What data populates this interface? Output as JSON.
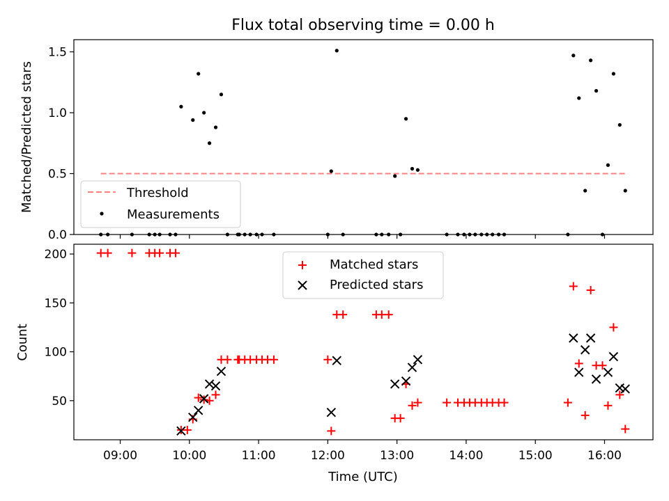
{
  "figure_title": "Flux total observing time = 0.00 h",
  "chart_data": [
    {
      "type": "scatter",
      "panel": "top",
      "title": "Flux total observing time = 0.00 h",
      "xlabel": "",
      "ylabel": "Matched/Predicted stars",
      "x_unit": "hours UTC (decimal)",
      "xlim": [
        8.33,
        16.7
      ],
      "ylim": [
        0,
        1.6
      ],
      "yticks": [
        0.0,
        0.5,
        1.0,
        1.5
      ],
      "ytick_labels": [
        "0.0",
        "0.5",
        "1.0",
        "1.5"
      ],
      "legend_position": "lower-left",
      "legend": [
        "Threshold",
        "Measurements"
      ],
      "threshold": {
        "name": "Threshold",
        "value": 0.5,
        "x_range": [
          8.72,
          16.33
        ],
        "color": "#ff8080",
        "style": "dashed"
      },
      "series": [
        {
          "name": "Measurements",
          "color": "#000000",
          "marker": "dot",
          "points": [
            [
              8.72,
              0
            ],
            [
              8.82,
              0
            ],
            [
              9.17,
              0
            ],
            [
              9.42,
              0
            ],
            [
              9.5,
              0
            ],
            [
              9.57,
              0
            ],
            [
              9.72,
              0
            ],
            [
              9.8,
              0
            ],
            [
              9.88,
              1.05
            ],
            [
              10.05,
              0.94
            ],
            [
              10.13,
              1.32
            ],
            [
              10.21,
              1.0
            ],
            [
              10.29,
              0.75
            ],
            [
              10.38,
              0.88
            ],
            [
              10.46,
              1.15
            ],
            [
              10.55,
              0
            ],
            [
              10.7,
              0
            ],
            [
              10.72,
              0
            ],
            [
              10.8,
              0
            ],
            [
              10.88,
              0
            ],
            [
              10.97,
              0
            ],
            [
              11.05,
              0
            ],
            [
              11.22,
              0
            ],
            [
              12.0,
              0
            ],
            [
              12.05,
              0.52
            ],
            [
              12.13,
              1.51
            ],
            [
              12.22,
              0
            ],
            [
              12.7,
              0
            ],
            [
              12.78,
              0
            ],
            [
              12.88,
              0
            ],
            [
              12.97,
              0.48
            ],
            [
              13.05,
              0
            ],
            [
              13.13,
              0.95
            ],
            [
              13.22,
              0.54
            ],
            [
              13.3,
              0.53
            ],
            [
              13.72,
              0
            ],
            [
              13.88,
              0
            ],
            [
              13.97,
              0
            ],
            [
              14.05,
              0
            ],
            [
              14.13,
              0
            ],
            [
              14.22,
              0
            ],
            [
              14.3,
              0
            ],
            [
              14.38,
              0
            ],
            [
              14.47,
              0
            ],
            [
              14.55,
              0
            ],
            [
              15.47,
              0
            ],
            [
              15.55,
              1.47
            ],
            [
              15.63,
              1.12
            ],
            [
              15.72,
              0.36
            ],
            [
              15.8,
              1.43
            ],
            [
              15.88,
              1.18
            ],
            [
              15.97,
              0
            ],
            [
              16.05,
              0.57
            ],
            [
              16.13,
              1.32
            ],
            [
              16.22,
              0.9
            ],
            [
              16.3,
              0.36
            ]
          ]
        }
      ]
    },
    {
      "type": "scatter",
      "panel": "bottom",
      "title": "",
      "xlabel": "Time (UTC)",
      "ylabel": "Count",
      "x_unit": "hours UTC (decimal)",
      "xlim": [
        8.33,
        16.7
      ],
      "ylim": [
        10,
        210
      ],
      "xticks": [
        9,
        10,
        11,
        12,
        13,
        14,
        15,
        16
      ],
      "xtick_labels": [
        "09:00",
        "10:00",
        "11:00",
        "12:00",
        "13:00",
        "14:00",
        "15:00",
        "16:00"
      ],
      "yticks": [
        50,
        100,
        150,
        200
      ],
      "ytick_labels": [
        "50",
        "100",
        "150",
        "200"
      ],
      "legend_position": "top-center",
      "legend": [
        "Matched stars",
        "Predicted stars"
      ],
      "series": [
        {
          "name": "Matched stars",
          "color": "#ff0000",
          "marker": "plus",
          "points": [
            [
              8.72,
              201
            ],
            [
              8.82,
              201
            ],
            [
              9.17,
              201
            ],
            [
              9.42,
              201
            ],
            [
              9.5,
              201
            ],
            [
              9.57,
              201
            ],
            [
              9.72,
              201
            ],
            [
              9.8,
              201
            ],
            [
              9.88,
              20
            ],
            [
              9.97,
              20
            ],
            [
              10.05,
              31
            ],
            [
              10.13,
              53
            ],
            [
              10.21,
              51
            ],
            [
              10.29,
              50
            ],
            [
              10.38,
              56
            ],
            [
              10.46,
              92
            ],
            [
              10.55,
              92
            ],
            [
              10.7,
              92
            ],
            [
              10.72,
              92
            ],
            [
              10.8,
              92
            ],
            [
              10.88,
              92
            ],
            [
              10.97,
              92
            ],
            [
              11.05,
              92
            ],
            [
              11.13,
              92
            ],
            [
              11.22,
              92
            ],
            [
              12.0,
              92
            ],
            [
              12.05,
              19
            ],
            [
              12.13,
              138
            ],
            [
              12.22,
              138
            ],
            [
              12.7,
              138
            ],
            [
              12.78,
              138
            ],
            [
              12.88,
              138
            ],
            [
              12.97,
              32
            ],
            [
              13.05,
              32
            ],
            [
              13.13,
              67
            ],
            [
              13.22,
              45
            ],
            [
              13.3,
              48
            ],
            [
              13.72,
              48
            ],
            [
              13.88,
              48
            ],
            [
              13.97,
              48
            ],
            [
              14.05,
              48
            ],
            [
              14.13,
              48
            ],
            [
              14.22,
              48
            ],
            [
              14.3,
              48
            ],
            [
              14.38,
              48
            ],
            [
              14.47,
              48
            ],
            [
              14.55,
              48
            ],
            [
              15.47,
              48
            ],
            [
              15.55,
              167
            ],
            [
              15.63,
              88
            ],
            [
              15.72,
              35
            ],
            [
              15.8,
              163
            ],
            [
              15.88,
              86
            ],
            [
              15.97,
              86
            ],
            [
              16.05,
              45
            ],
            [
              16.13,
              125
            ],
            [
              16.22,
              56
            ],
            [
              16.3,
              21
            ]
          ]
        },
        {
          "name": "Predicted stars",
          "color": "#000000",
          "marker": "x",
          "points": [
            [
              9.88,
              19
            ],
            [
              10.05,
              33
            ],
            [
              10.13,
              40
            ],
            [
              10.21,
              52
            ],
            [
              10.29,
              67
            ],
            [
              10.38,
              65
            ],
            [
              10.46,
              80
            ],
            [
              12.05,
              38
            ],
            [
              12.13,
              91
            ],
            [
              12.97,
              67
            ],
            [
              13.13,
              70
            ],
            [
              13.22,
              84
            ],
            [
              13.3,
              92
            ],
            [
              15.55,
              114
            ],
            [
              15.63,
              79
            ],
            [
              15.72,
              102
            ],
            [
              15.8,
              114
            ],
            [
              15.88,
              72
            ],
            [
              16.05,
              79
            ],
            [
              16.13,
              95
            ],
            [
              16.22,
              63
            ],
            [
              16.3,
              62
            ]
          ]
        }
      ]
    }
  ]
}
